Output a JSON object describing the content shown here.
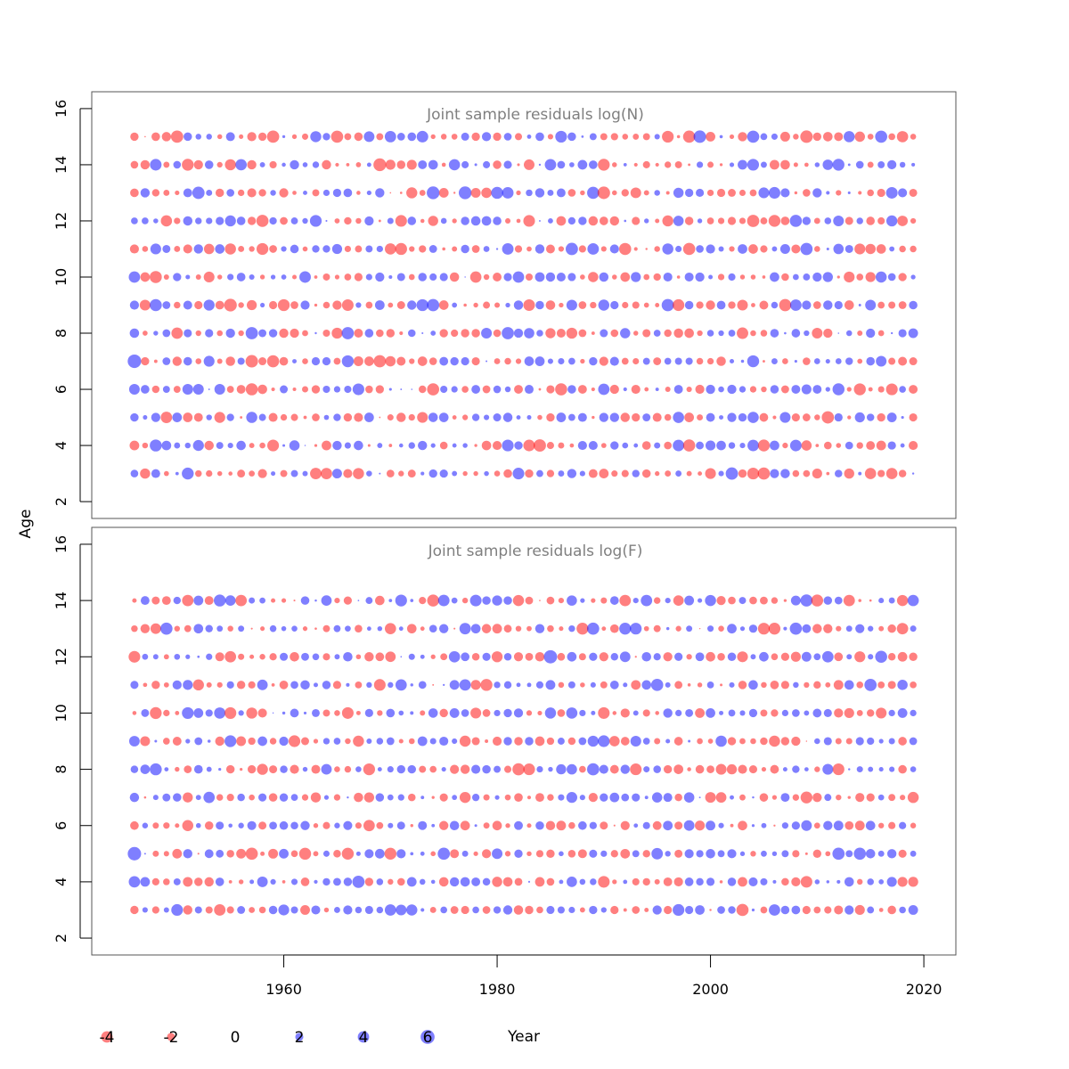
{
  "chart_data": {
    "type": "scatter",
    "subtype": "bubble",
    "xlabel": "Year",
    "ylabel": "Age",
    "x_ticks": [
      1960,
      1980,
      2000,
      2020
    ],
    "y_ticks": [
      2,
      4,
      6,
      8,
      10,
      12,
      14,
      16
    ],
    "xlim": [
      1942,
      2023
    ],
    "colors": {
      "positive": "#0000ff",
      "negative": "#ff0000",
      "opacity": 0.5
    },
    "legend": {
      "values": [
        -4,
        -2,
        0,
        2,
        4,
        6
      ],
      "labels": [
        "-4",
        "-2",
        "0",
        "2",
        "4",
        "6"
      ],
      "title": "Year"
    },
    "panels": [
      {
        "title": "Joint sample residuals log(N)",
        "ylim": [
          1.4,
          16.6
        ],
        "years": [
          1946,
          2019
        ],
        "ages": [
          3,
          15
        ],
        "sample_points": [
          {
            "x": 1946,
            "y": 7,
            "v": 5.6
          },
          {
            "x": 1946,
            "y": 10,
            "v": 4.0
          },
          {
            "x": 1948,
            "y": 10,
            "v": -4.5
          },
          {
            "x": 1955,
            "y": 9,
            "v": -5.0
          },
          {
            "x": 1957,
            "y": 7,
            "v": -4.8
          },
          {
            "x": 1967,
            "y": 6,
            "v": 4.2
          },
          {
            "x": 1967,
            "y": 3,
            "v": -3.8
          },
          {
            "x": 1968,
            "y": 15,
            "v": 3.5
          },
          {
            "x": 1969,
            "y": 14,
            "v": -5.0
          },
          {
            "x": 1974,
            "y": 13,
            "v": 5.0
          },
          {
            "x": 1977,
            "y": 13,
            "v": 5.0
          },
          {
            "x": 1981,
            "y": 4,
            "v": 4.2
          },
          {
            "x": 1985,
            "y": 14,
            "v": 4.0
          },
          {
            "x": 1989,
            "y": 13,
            "v": 4.5
          },
          {
            "x": 1990,
            "y": 13,
            "v": -4.8
          },
          {
            "x": 1998,
            "y": 4,
            "v": -4.5
          },
          {
            "x": 1999,
            "y": 15,
            "v": 4.8
          },
          {
            "x": 2004,
            "y": 7,
            "v": 4.4
          },
          {
            "x": 2004,
            "y": 12,
            "v": -4.6
          },
          {
            "x": 2004,
            "y": 14,
            "v": 4.2
          },
          {
            "x": 2008,
            "y": 12,
            "v": 4.5
          },
          {
            "x": 2009,
            "y": 15,
            "v": -4.8
          },
          {
            "x": 2013,
            "y": 15,
            "v": 3.8
          },
          {
            "x": 2015,
            "y": 9,
            "v": 3.5
          }
        ]
      },
      {
        "title": "Joint sample residuals log(F)",
        "ylim": [
          1.4,
          16.6
        ],
        "years": [
          1946,
          2019
        ],
        "ages": [
          3,
          14
        ],
        "sample_points": [
          {
            "x": 1946,
            "y": 5,
            "v": 5.5
          },
          {
            "x": 1946,
            "y": 4,
            "v": 4.0
          },
          {
            "x": 1950,
            "y": 3,
            "v": 4.2
          },
          {
            "x": 1951,
            "y": 14,
            "v": -4.0
          },
          {
            "x": 1956,
            "y": 14,
            "v": -4.0
          },
          {
            "x": 1967,
            "y": 9,
            "v": -3.8
          },
          {
            "x": 1967,
            "y": 4,
            "v": 4.6
          },
          {
            "x": 1972,
            "y": 3,
            "v": 3.8
          },
          {
            "x": 1975,
            "y": 5,
            "v": 4.6
          },
          {
            "x": 1977,
            "y": 13,
            "v": 4.0
          },
          {
            "x": 1977,
            "y": 11,
            "v": 4.0
          },
          {
            "x": 1982,
            "y": 14,
            "v": -3.8
          },
          {
            "x": 1985,
            "y": 12,
            "v": 5.4
          },
          {
            "x": 1985,
            "y": 10,
            "v": 3.8
          },
          {
            "x": 1990,
            "y": 10,
            "v": -4.2
          },
          {
            "x": 1993,
            "y": 13,
            "v": 4.2
          },
          {
            "x": 1994,
            "y": 14,
            "v": 4.0
          },
          {
            "x": 2000,
            "y": 14,
            "v": 3.8
          },
          {
            "x": 2006,
            "y": 3,
            "v": 4.0
          },
          {
            "x": 2013,
            "y": 14,
            "v": -4.0
          },
          {
            "x": 2018,
            "y": 13,
            "v": -4.0
          },
          {
            "x": 2019,
            "y": 7,
            "v": -3.8
          }
        ]
      }
    ]
  }
}
